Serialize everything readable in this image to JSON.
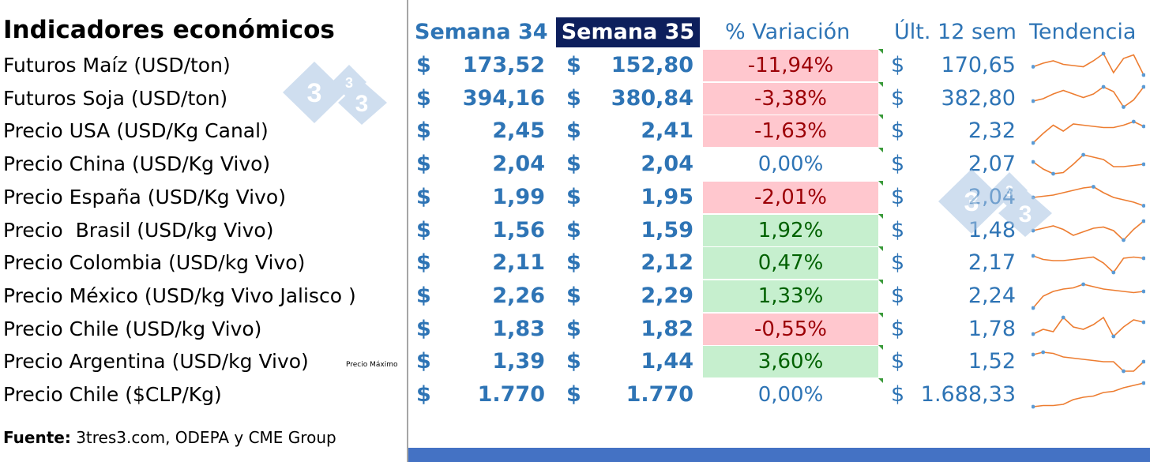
{
  "title": "Indicadores económicos",
  "headers": {
    "semana34": "Semana 34",
    "semana35": "Semana 35",
    "variacion": "% Variación",
    "ult12": "Últ. 12 sem",
    "tendencia": "Tendencia"
  },
  "currency_symbol": "$",
  "rows": [
    {
      "label": "Futuros Maíz (USD/ton)",
      "s34": "173,52",
      "s35": "152,80",
      "var": "-11,94%",
      "var_status": "neg",
      "ult12": "170,65",
      "trend": [
        0.55,
        0.4,
        0.3,
        0.45,
        0.5,
        0.55,
        0.3,
        0.0,
        0.8,
        0.2,
        0.05,
        0.9
      ]
    },
    {
      "label": "Futuros Soja (USD/ton)",
      "s34": "394,16",
      "s35": "380,84",
      "var": "-3,38%",
      "var_status": "neg",
      "ult12": "382,80",
      "trend": [
        0.6,
        0.5,
        0.3,
        0.15,
        0.3,
        0.45,
        0.3,
        0.0,
        0.2,
        0.85,
        0.55,
        0.0
      ]
    },
    {
      "label": "Precio USA (USD/Kg Canal)",
      "s34": "2,45",
      "s35": "2,41",
      "var": "-1,63%",
      "var_status": "neg",
      "ult12": "2,32",
      "trend": [
        1.0,
        0.6,
        0.25,
        0.5,
        0.2,
        0.25,
        0.3,
        0.35,
        0.35,
        0.25,
        0.1,
        0.3
      ]
    },
    {
      "label": "Precio China (USD/Kg Vivo)",
      "s34": "2,04",
      "s35": "2,04",
      "var": "0,00%",
      "var_status": "zero",
      "ult12": "2,07",
      "trend": [
        0.4,
        0.7,
        0.9,
        0.85,
        0.5,
        0.1,
        0.2,
        0.3,
        0.6,
        0.6,
        0.55,
        0.5
      ]
    },
    {
      "label": "Precio España (USD/Kg Vivo)",
      "s34": "1,99",
      "s35": "1,95",
      "var": "-2,01%",
      "var_status": "neg",
      "ult12": "2,04",
      "trend": [
        0.5,
        0.45,
        0.4,
        0.3,
        0.2,
        0.1,
        0.05,
        0.3,
        0.5,
        0.6,
        0.7,
        0.85
      ]
    },
    {
      "label": "Precio  Brasil (USD/kg Vivo)",
      "s34": "1,56",
      "s35": "1,59",
      "var": "1,92%",
      "var_status": "pos",
      "ult12": "1,48",
      "trend": [
        0.5,
        0.4,
        0.3,
        0.45,
        0.7,
        0.55,
        0.4,
        0.35,
        0.5,
        0.9,
        0.45,
        0.1
      ]
    },
    {
      "label": "Precio Colombia (USD/kg Vivo)",
      "s34": "2,11",
      "s35": "2,12",
      "var": "0,47%",
      "var_status": "pos",
      "ult12": "2,17",
      "trend": [
        0.2,
        0.35,
        0.4,
        0.4,
        0.35,
        0.3,
        0.25,
        0.5,
        0.9,
        0.3,
        0.25,
        0.3
      ]
    },
    {
      "label": "Precio México (USD/kg Vivo Jalisco )",
      "s34": "2,26",
      "s35": "2,29",
      "var": "1,33%",
      "var_status": "pos",
      "ult12": "2,24",
      "trend": [
        1.0,
        0.5,
        0.3,
        0.2,
        0.15,
        0.0,
        0.1,
        0.2,
        0.25,
        0.3,
        0.35,
        0.3
      ]
    },
    {
      "label": "Precio Chile (USD/kg Vivo)",
      "s34": "1,83",
      "s35": "1,82",
      "var": "-0,55%",
      "var_status": "neg",
      "ult12": "1,78",
      "trend": [
        0.7,
        0.5,
        0.6,
        0.0,
        0.4,
        0.5,
        0.3,
        0.0,
        0.8,
        0.4,
        0.1,
        0.2
      ]
    },
    {
      "label": "Precio Argentina (USD/kg Vivo)",
      "note": "Precio Máximo",
      "s34": "1,39",
      "s35": "1,44",
      "var": "3,60%",
      "var_status": "pos",
      "ult12": "1,52",
      "trend": [
        0.2,
        0.1,
        0.15,
        0.3,
        0.35,
        0.4,
        0.45,
        0.5,
        0.5,
        0.9,
        0.9,
        0.5
      ]
    },
    {
      "label": "Precio Chile ($CLP/Kg)",
      "s34": "1.770",
      "s35": "1.770",
      "var": "0,00%",
      "var_status": "zero",
      "ult12": "1.688,33",
      "trend": [
        1.0,
        0.95,
        0.95,
        0.9,
        0.7,
        0.6,
        0.55,
        0.4,
        0.35,
        0.2,
        0.1,
        0.0
      ]
    }
  ],
  "source": {
    "prefix": "Fuente:",
    "text": " 3tres3.com, ODEPA y CME Group"
  },
  "logo": {
    "text": "3",
    "small_text": "3"
  },
  "colors": {
    "accent_blue": "#2e74b5",
    "header_dark": "#0d1f5c",
    "neg_bg": "#ffc7ce",
    "neg_text": "#9c0006",
    "pos_bg": "#c6efce",
    "pos_text": "#006100",
    "spark_line": "#ed7d31",
    "spark_marker": "#5b9bd5",
    "bottom_bar": "#4472c4"
  }
}
